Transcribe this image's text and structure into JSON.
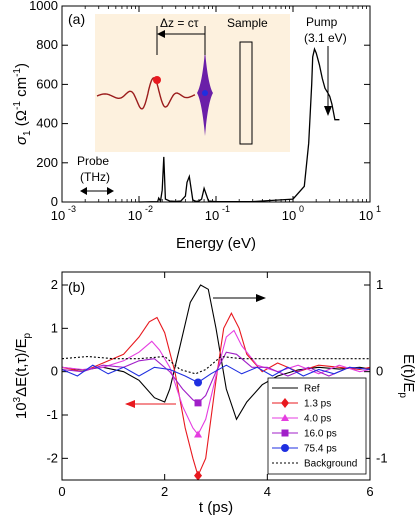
{
  "chart_data": [
    {
      "type": "line",
      "panel_label": "(a)",
      "xscale": "log",
      "xlim": [
        0.001,
        10
      ],
      "ylim": [
        0,
        1000
      ],
      "xticks": [
        0.001,
        0.01,
        0.1,
        1,
        10
      ],
      "xtick_labels": [
        "10",
        "10",
        "10",
        "10",
        "10"
      ],
      "xtick_exponents": [
        "-3",
        "-2",
        "-1",
        "0",
        "1"
      ],
      "yticks": [
        0,
        200,
        400,
        600,
        800,
        1000
      ],
      "ytick_labels": [
        "0",
        "200",
        "400",
        "600",
        "800",
        "1000"
      ],
      "xlabel": "Energy (eV)",
      "ylabel_main": "σ",
      "ylabel_sub": "1",
      "ylabel_units": "(Ω",
      "ylabel_exp1": "-1",
      "ylabel_cm": " cm",
      "ylabel_exp2": "-1",
      "ylabel_close": ")",
      "series": [
        {
          "x": [
            0.01,
            0.0175,
            0.018,
            0.019,
            0.02,
            0.021,
            0.022,
            0.025,
            0.03,
            0.035,
            0.04,
            0.042,
            0.045,
            0.05,
            0.055,
            0.06,
            0.065,
            0.07,
            0.08,
            0.1,
            0.3,
            1.0,
            1.4,
            1.6,
            1.75,
            1.8,
            1.9,
            2.0,
            2.2,
            2.4,
            2.6,
            2.8,
            3.0,
            3.2,
            3.5,
            4.0
          ],
          "y": [
            0,
            2,
            20,
            5,
            60,
            230,
            15,
            5,
            3,
            5,
            30,
            100,
            130,
            10,
            3,
            5,
            15,
            70,
            5,
            2,
            2,
            15,
            80,
            300,
            600,
            740,
            780,
            760,
            700,
            630,
            580,
            560,
            540,
            500,
            420,
            420
          ],
          "color": "#000000"
        }
      ],
      "annotations": {
        "delta_z": "Δz = cτ",
        "sample": "Sample",
        "pump_line1": "Pump",
        "pump_line2": "(3.1 eV)",
        "probe_line1": "Probe",
        "probe_line2": "(THz)"
      },
      "inset_background": "#fdf1de",
      "pulse_color": "#9b1c1c",
      "pump_pulse_color": "#6a1fa8",
      "marker_color": "#e8191f"
    },
    {
      "type": "line",
      "panel_label": "(b)",
      "xlim": [
        0,
        6
      ],
      "ylim_left": [
        -2.5,
        2.3
      ],
      "ylim_right": [
        -1.25,
        1.15
      ],
      "xticks": [
        0,
        2,
        4,
        6
      ],
      "xtick_labels": [
        "0",
        "2",
        "4",
        "6"
      ],
      "yticks_left": [
        -2,
        -1,
        0,
        1,
        2
      ],
      "ytick_labels_left": [
        "-2",
        "-1",
        "0",
        "1",
        "2"
      ],
      "yticks_right": [
        -1,
        0,
        1
      ],
      "ytick_labels_right": [
        "-1",
        "0",
        "1"
      ],
      "xlabel": "t (ps)",
      "ylabel_left": "10",
      "ylabel_left_exp": "3",
      "ylabel_left_rest": "ΔE(t,τ)/E",
      "ylabel_left_sub": "p",
      "ylabel_right": "E(t)/E",
      "ylabel_right_sub": "p",
      "legend_position": "lower-right",
      "series": [
        {
          "name": "Ref",
          "axis": "right",
          "color": "#000000",
          "dash": "",
          "x": [
            0,
            0.4,
            0.8,
            1.2,
            1.5,
            1.8,
            2.0,
            2.1,
            2.3,
            2.5,
            2.7,
            2.85,
            3.0,
            3.2,
            3.4,
            3.6,
            3.9,
            4.2,
            4.6,
            5.0,
            5.4,
            5.8,
            6.0
          ],
          "y": [
            0.05,
            0.02,
            0.05,
            0.0,
            -0.1,
            -0.3,
            -0.35,
            -0.2,
            0.3,
            0.8,
            1.0,
            0.95,
            0.5,
            -0.2,
            -0.55,
            -0.35,
            -0.15,
            -0.05,
            0.02,
            0.05,
            0.03,
            0.05,
            0.03
          ]
        },
        {
          "name": "1.3 ps",
          "axis": "left",
          "color": "#e8191f",
          "dash": "",
          "marker": "diamond",
          "marker_x": 2.65,
          "marker_y": -2.4,
          "x": [
            0,
            0.4,
            0.8,
            1.2,
            1.5,
            1.7,
            1.85,
            2.0,
            2.2,
            2.4,
            2.55,
            2.65,
            2.8,
            3.0,
            3.15,
            3.3,
            3.45,
            3.6,
            3.9,
            4.2,
            4.6,
            5.0,
            5.4,
            5.8,
            6.0
          ],
          "y": [
            0.1,
            0.0,
            0.2,
            0.4,
            0.8,
            1.15,
            1.25,
            0.9,
            0.0,
            -1.3,
            -2.0,
            -2.4,
            -2.0,
            -0.2,
            1.0,
            1.35,
            1.0,
            0.4,
            0.0,
            0.2,
            0.0,
            0.15,
            0.1,
            0.05,
            0.1
          ]
        },
        {
          "name": "4.0 ps",
          "axis": "left",
          "color": "#e53de0",
          "dash": "",
          "marker": "triangle",
          "marker_x": 2.65,
          "marker_y": -1.45,
          "x": [
            0,
            0.4,
            0.8,
            1.2,
            1.5,
            1.75,
            1.9,
            2.1,
            2.35,
            2.55,
            2.65,
            2.8,
            3.0,
            3.2,
            3.35,
            3.5,
            3.8,
            4.2,
            4.6,
            5.0,
            5.4,
            5.8,
            6.0
          ],
          "y": [
            0.1,
            0.05,
            0.1,
            0.25,
            0.45,
            0.7,
            0.5,
            0.1,
            -0.8,
            -1.3,
            -1.45,
            -1.1,
            -0.1,
            0.8,
            0.95,
            0.6,
            0.15,
            0.0,
            0.15,
            -0.05,
            0.15,
            0.0,
            0.05
          ]
        },
        {
          "name": "16.0 ps",
          "axis": "left",
          "color": "#a01fc8",
          "dash": "",
          "marker": "square",
          "marker_x": 2.65,
          "marker_y": -0.72,
          "x": [
            0,
            0.4,
            0.8,
            1.2,
            1.5,
            1.8,
            2.1,
            2.35,
            2.55,
            2.65,
            2.8,
            3.0,
            3.2,
            3.4,
            3.7,
            4.0,
            4.4,
            4.8,
            5.2,
            5.6,
            6.0
          ],
          "y": [
            0.05,
            0.0,
            0.15,
            0.1,
            0.25,
            0.3,
            0.0,
            -0.4,
            -0.65,
            -0.72,
            -0.55,
            0.0,
            0.45,
            0.4,
            0.1,
            0.1,
            -0.1,
            0.1,
            -0.1,
            0.1,
            0.05
          ]
        },
        {
          "name": "75.4 ps",
          "axis": "left",
          "color": "#1f2fe0",
          "dash": "",
          "marker": "circle",
          "marker_x": 2.65,
          "marker_y": -0.25,
          "x": [
            0,
            0.3,
            0.6,
            0.9,
            1.2,
            1.5,
            1.8,
            2.1,
            2.4,
            2.65,
            2.9,
            3.2,
            3.5,
            3.8,
            4.1,
            4.4,
            4.7,
            5.0,
            5.3,
            5.6,
            6.0
          ],
          "y": [
            0.05,
            -0.1,
            0.15,
            -0.05,
            0.1,
            -0.1,
            0.1,
            0.05,
            -0.1,
            -0.25,
            -0.05,
            0.15,
            -0.05,
            0.1,
            -0.1,
            0.1,
            -0.1,
            0.05,
            -0.05,
            0.1,
            0.05
          ]
        },
        {
          "name": "Background",
          "axis": "left",
          "color": "#000000",
          "dash": "2,2",
          "x": [
            0,
            0.5,
            1.0,
            1.5,
            2.0,
            2.3,
            2.6,
            2.8,
            3.1,
            3.5,
            4.0,
            4.5,
            5.0,
            5.5,
            6.0
          ],
          "y": [
            0.3,
            0.35,
            0.3,
            0.3,
            0.35,
            0.05,
            -0.05,
            0.05,
            0.35,
            0.3,
            0.3,
            0.3,
            0.3,
            0.3,
            0.3
          ]
        }
      ]
    }
  ]
}
